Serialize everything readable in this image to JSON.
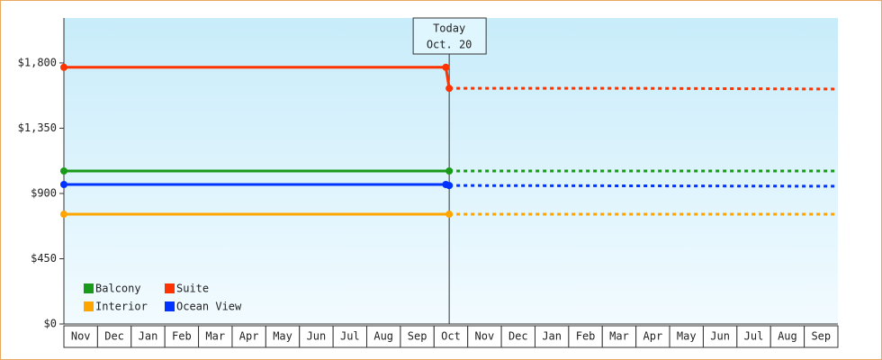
{
  "chart_data": {
    "type": "line",
    "categories": [
      "Nov",
      "Dec",
      "Jan",
      "Feb",
      "Mar",
      "Apr",
      "May",
      "Jun",
      "Jul",
      "Aug",
      "Sep",
      "Oct",
      "Nov",
      "Dec",
      "Jan",
      "Feb",
      "Mar",
      "Apr",
      "May",
      "Jun",
      "Jul",
      "Aug",
      "Sep"
    ],
    "xlim": [
      0,
      23
    ],
    "ylim": [
      0,
      2110
    ],
    "yticks": [
      {
        "value": 0,
        "label": "$0"
      },
      {
        "value": 450,
        "label": "$450"
      },
      {
        "value": 900,
        "label": "$900"
      },
      {
        "value": 1350,
        "label": "$1,350"
      },
      {
        "value": 1800,
        "label": "$1,800"
      }
    ],
    "today": {
      "label": "Today",
      "date": "Oct. 20",
      "x": 11.45
    },
    "legend": "lower left",
    "series": [
      {
        "name": "Balcony",
        "color": "#1a9a1a",
        "x": [
          0,
          11.45,
          23
        ],
        "values": [
          1055,
          1055,
          1055
        ]
      },
      {
        "name": "Suite",
        "color": "#ff3300",
        "x": [
          0,
          11.35,
          11.45,
          17,
          23
        ],
        "values": [
          1770,
          1770,
          1625,
          1625,
          1620
        ]
      },
      {
        "name": "Interior",
        "color": "#ffa500",
        "x": [
          0,
          11.45,
          23
        ],
        "values": [
          757,
          757,
          757
        ]
      },
      {
        "name": "Ocean View",
        "color": "#0033ff",
        "x": [
          0,
          11.35,
          11.45,
          23
        ],
        "values": [
          962,
          962,
          955,
          950
        ]
      }
    ]
  }
}
